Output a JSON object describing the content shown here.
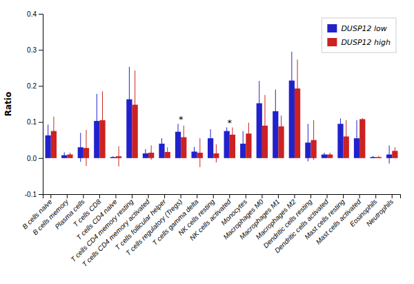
{
  "chart_data": {
    "type": "bar",
    "categories": [
      "B cells naive",
      "B cells memory",
      "Plasma cells",
      "T cells CD8",
      "T cells CD4 naive",
      "T cells CD4 memory resting",
      "T cells CD4 memory activated",
      "T cells follicular helper",
      "T cells regulatory (Tregs)",
      "T cells gamma delta",
      "NK cells resting",
      "NK cells activated",
      "Monocytes",
      "Macrophages M0",
      "Macrophages M1",
      "Macrophages M2",
      "Dendritic cells resting",
      "Dendritic cells activated",
      "Mast cells resting",
      "Mast cells activated",
      "Eosinophils",
      "Neutrophils"
    ],
    "series": [
      {
        "name": "DUSP12 low",
        "color": "#2222CC",
        "values": [
          0.063,
          0.008,
          0.03,
          0.103,
          0.003,
          0.163,
          0.013,
          0.04,
          0.073,
          0.018,
          0.055,
          0.075,
          0.04,
          0.152,
          0.13,
          0.215,
          0.043,
          0.01,
          0.095,
          0.055,
          0.003,
          0.01
        ],
        "errors": [
          0.03,
          0.008,
          0.04,
          0.075,
          0.002,
          0.09,
          0.012,
          0.015,
          0.022,
          0.013,
          0.025,
          0.01,
          0.035,
          0.062,
          0.06,
          0.08,
          0.052,
          0.005,
          0.015,
          0.05,
          0.003,
          0.025
        ]
      },
      {
        "name": "DUSP12 high",
        "color": "#CC2222",
        "values": [
          0.075,
          0.01,
          0.028,
          0.105,
          0.005,
          0.148,
          0.015,
          0.017,
          0.058,
          0.015,
          0.013,
          0.065,
          0.068,
          0.09,
          0.088,
          0.193,
          0.05,
          0.01,
          0.06,
          0.108,
          0.003,
          0.02
        ],
        "errors": [
          0.04,
          0.005,
          0.05,
          0.08,
          0.028,
          0.095,
          0.02,
          0.013,
          0.032,
          0.04,
          0.025,
          0.02,
          0.03,
          0.085,
          0.03,
          0.08,
          0.055,
          0.005,
          0.045,
          0.003,
          0.003,
          0.01
        ]
      }
    ],
    "annotations": [
      {
        "text": "*",
        "x": "T cells regulatory (Tregs)",
        "y": 0.1
      },
      {
        "text": "*",
        "x": "NK cells activated",
        "y": 0.09
      }
    ],
    "ylabel": "Ratio",
    "ylim": [
      -0.1,
      0.4
    ],
    "yticks": [
      -0.1,
      {
        "value": 0,
        "label": "0.0"
      },
      0.1,
      0.2,
      0.3,
      0.4
    ],
    "legend": "upper right",
    "grid": false
  }
}
